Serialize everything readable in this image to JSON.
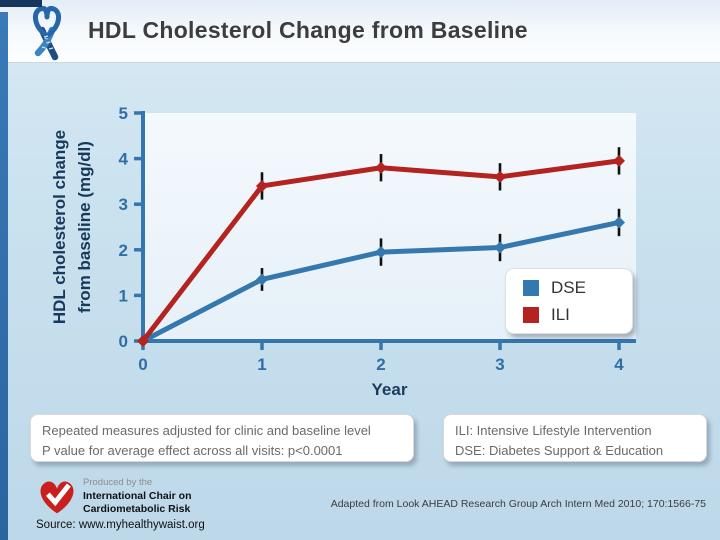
{
  "header": {
    "title": "HDL Cholesterol Change from Baseline"
  },
  "chart_data": {
    "type": "line",
    "x": [
      0,
      1,
      2,
      3,
      4
    ],
    "series": [
      {
        "name": "DSE",
        "color": "#3478ad",
        "values": [
          0,
          1.35,
          1.95,
          2.05,
          2.6
        ],
        "errors": [
          0,
          0.25,
          0.3,
          0.3,
          0.3
        ]
      },
      {
        "name": "ILI",
        "color": "#b4231f",
        "values": [
          0,
          3.4,
          3.8,
          3.6,
          3.95
        ],
        "errors": [
          0,
          0.3,
          0.3,
          0.3,
          0.3
        ]
      }
    ],
    "xlabel": "Year",
    "ylabel": "HDL cholesterol change\nfrom baseline (mg/dl)",
    "ylim": [
      0,
      5
    ],
    "yticks": [
      0,
      1,
      2,
      3,
      4,
      5
    ],
    "xticks": [
      0,
      1,
      2,
      3,
      4
    ],
    "legend_position": "bottom-right",
    "grid": false,
    "colors": {
      "axis": "#3577ad",
      "tick_labels": "#2f6ea6",
      "error_bar": "#101010",
      "plot_bg_top": "#f4f9fd",
      "plot_bg_bottom": "#e6f0f8"
    }
  },
  "notes": {
    "left_line1": "Repeated measures adjusted for clinic and baseline level",
    "left_line2": "P value for average effect across all visits: p<0.0001",
    "right_line1": "ILI: Intensive Lifestyle Intervention",
    "right_line2": "DSE: Diabetes Support & Education"
  },
  "footer": {
    "produced_by": "Produced by the",
    "org_line1": "International Chair on",
    "org_line2": "Cardiometabolic Risk",
    "adapted": "Adapted from Look AHEAD Research Group Arch Intern Med 2010; 170:1566-75",
    "source": "Source: www.myhealthywaist.org"
  }
}
